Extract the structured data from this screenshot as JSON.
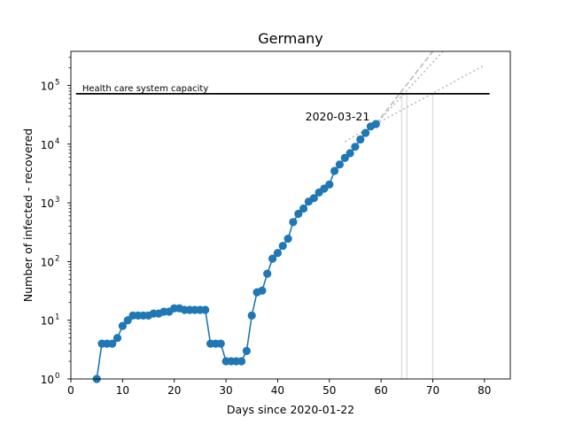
{
  "chart_data": {
    "type": "line",
    "title": "Germany",
    "xlabel": "Days since 2020-01-22",
    "ylabel": "Number of infected - recovered",
    "y_scale": "log",
    "xlim": [
      0,
      85
    ],
    "ylim": [
      1,
      380000
    ],
    "x_ticks": [
      0,
      10,
      20,
      30,
      40,
      50,
      60,
      70,
      80
    ],
    "y_ticks": [
      {
        "value": 1,
        "base": "10",
        "exp": "0"
      },
      {
        "value": 10,
        "base": "10",
        "exp": "1"
      },
      {
        "value": 100,
        "base": "10",
        "exp": "2"
      },
      {
        "value": 1000,
        "base": "10",
        "exp": "3"
      },
      {
        "value": 10000,
        "base": "10",
        "exp": "4"
      },
      {
        "value": 100000,
        "base": "10",
        "exp": "5"
      }
    ],
    "grid": false,
    "colors": {
      "series": "#1f77b4",
      "capacity": "#000000",
      "projection": "#bbbbbb",
      "vlines": "#dddddd"
    },
    "series": [
      {
        "x": [
          5,
          6,
          7,
          8,
          9,
          10,
          11,
          12,
          13,
          14,
          15,
          16,
          17,
          18,
          19,
          20,
          21,
          22,
          23,
          24,
          25,
          26,
          27,
          28,
          29,
          30,
          31,
          32,
          33,
          34,
          35,
          36,
          37,
          38,
          39,
          40,
          41,
          42,
          43,
          44,
          45,
          46,
          47,
          48,
          49,
          50,
          51,
          52,
          53,
          54,
          55,
          56,
          57,
          58,
          59
        ],
        "values": [
          1,
          4,
          4,
          4,
          5,
          8,
          10,
          12,
          12,
          12,
          12,
          13,
          13,
          14,
          14,
          16,
          16,
          15,
          15,
          15,
          15,
          15,
          4,
          4,
          4,
          2,
          2,
          2,
          2,
          3,
          12,
          30,
          32,
          62,
          112,
          140,
          185,
          245,
          470,
          650,
          800,
          1050,
          1200,
          1500,
          1750,
          2050,
          3500,
          4500,
          5800,
          7000,
          9000,
          12000,
          15500,
          20000,
          22000
        ]
      }
    ],
    "hline": {
      "y": 72000,
      "xmin": 1,
      "xmax": 81,
      "label": "Health care system capacity"
    },
    "projections": [
      {
        "x": [
          53,
          59,
          72
        ],
        "y": [
          11000,
          22000,
          380000
        ]
      },
      {
        "x": [
          59,
          70
        ],
        "y": [
          22000,
          380000
        ]
      },
      {
        "x": [
          59,
          80
        ],
        "y": [
          22000,
          220000
        ]
      }
    ],
    "vlines": [
      64,
      65,
      70
    ],
    "annotation": {
      "text": "2020-03-21",
      "x": 59,
      "y": 22000
    }
  }
}
